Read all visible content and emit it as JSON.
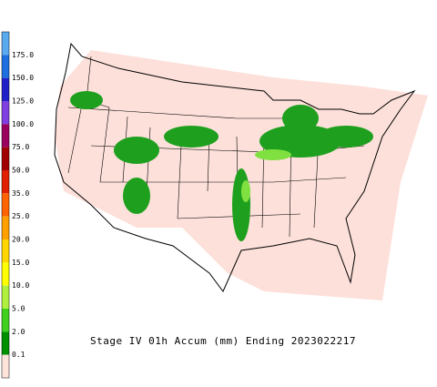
{
  "title": "Stage IV 01h Accum (mm) Ending 2023022217",
  "legend": {
    "labels": [
      "175.0",
      "150.0",
      "125.0",
      "100.0",
      "75.0",
      "50.0",
      "35.0",
      "25.0",
      "20.0",
      "15.0",
      "10.0",
      "5.0",
      "2.0",
      "0.1"
    ],
    "colors": [
      "#5aaaf0",
      "#1e6fe0",
      "#2020c8",
      "#8040e0",
      "#9a0060",
      "#a00000",
      "#e02000",
      "#ff6400",
      "#ffa000",
      "#ffd700",
      "#ffff00",
      "#b0f040",
      "#40d020",
      "#009000",
      "#ffe4dc"
    ]
  }
}
